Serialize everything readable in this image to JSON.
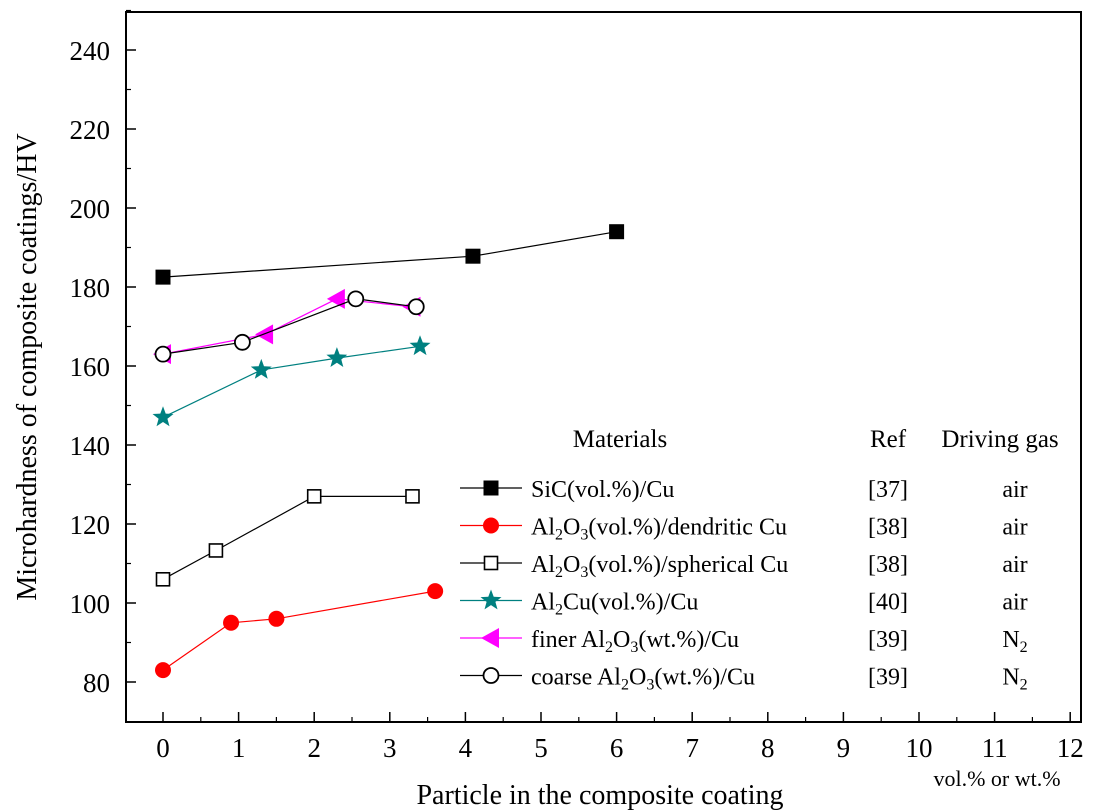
{
  "chart_data": {
    "type": "line",
    "xlabel": "Particle in the composite coating",
    "xunit": "vol.% or wt.%",
    "ylabel": "Microhardness of composite coatings/HV",
    "xlim": [
      -0.5,
      12
    ],
    "ylim": [
      71,
      254
    ],
    "xticks": [
      0,
      1,
      2,
      3,
      4,
      5,
      6,
      7,
      8,
      9,
      10,
      11,
      12
    ],
    "yticks": [
      80,
      100,
      120,
      140,
      160,
      180,
      200,
      220,
      240
    ],
    "legend": {
      "headers": {
        "materials": "Materials",
        "ref": "Ref",
        "gas": "Driving gas"
      },
      "placement": "lower-right"
    },
    "series": [
      {
        "name": "SiC(vol.%)/Cu",
        "ref": "[37]",
        "gas": "air",
        "marker": "square-filled",
        "color": "#000000",
        "line_color": "#000000",
        "x": [
          0,
          4.1,
          6.0
        ],
        "y": [
          182.5,
          187.8,
          194.0
        ],
        "label_parts": [
          {
            "t": "SiC(vol.%)/Cu"
          }
        ],
        "gas_parts": [
          {
            "t": "air"
          }
        ]
      },
      {
        "name": "Al2O3(vol.%)/dendritic Cu",
        "ref": "[38]",
        "gas": "air",
        "marker": "circle-filled",
        "color": "#ff0000",
        "line_color": "#ff0000",
        "x": [
          0,
          0.9,
          1.5,
          3.6
        ],
        "y": [
          83,
          95,
          96,
          103
        ],
        "label_parts": [
          {
            "t": "Al"
          },
          {
            "t": "2",
            "sub": true
          },
          {
            "t": "O"
          },
          {
            "t": "3",
            "sub": true
          },
          {
            "t": "(vol.%)/dendritic Cu"
          }
        ],
        "gas_parts": [
          {
            "t": "air"
          }
        ]
      },
      {
        "name": "Al2O3(vol.%)/spherical Cu",
        "ref": "[38]",
        "gas": "air",
        "marker": "square-open",
        "color": "#000000",
        "line_color": "#000000",
        "x": [
          0,
          0.7,
          2.0,
          3.3
        ],
        "y": [
          106,
          113.3,
          127,
          127
        ],
        "label_parts": [
          {
            "t": "Al"
          },
          {
            "t": "2",
            "sub": true
          },
          {
            "t": "O"
          },
          {
            "t": "3",
            "sub": true
          },
          {
            "t": "(vol.%)/spherical Cu"
          }
        ],
        "gas_parts": [
          {
            "t": "air"
          }
        ]
      },
      {
        "name": "Al2Cu(vol.%)/Cu",
        "ref": "[40]",
        "gas": "air",
        "marker": "star",
        "color": "#008080",
        "line_color": "#008080",
        "x": [
          0,
          1.3,
          2.3,
          3.4
        ],
        "y": [
          147,
          159,
          162,
          165
        ],
        "label_parts": [
          {
            "t": "Al"
          },
          {
            "t": "2",
            "sub": true
          },
          {
            "t": "Cu(vol.%)/Cu"
          }
        ],
        "gas_parts": [
          {
            "t": "air"
          }
        ]
      },
      {
        "name": "finer Al2O3(wt.%)/Cu",
        "ref": "[39]",
        "gas": "N2",
        "marker": "triangle-left",
        "color": "#ff00ff",
        "line_color": "#ff00ff",
        "x": [
          0,
          1.35,
          2.3,
          3.3
        ],
        "y": [
          163,
          168,
          177,
          175
        ],
        "label_parts": [
          {
            "t": "finer Al"
          },
          {
            "t": "2",
            "sub": true
          },
          {
            "t": "O"
          },
          {
            "t": "3",
            "sub": true
          },
          {
            "t": "(wt.%)/Cu"
          }
        ],
        "gas_parts": [
          {
            "t": "N"
          },
          {
            "t": "2",
            "sub": true
          }
        ]
      },
      {
        "name": "coarse Al2O3(wt.%)/Cu",
        "ref": "[39]",
        "gas": "N2",
        "marker": "circle-open",
        "color": "#000000",
        "line_color": "#000000",
        "x": [
          0,
          1.05,
          2.55,
          3.35
        ],
        "y": [
          163,
          166,
          177,
          175
        ],
        "label_parts": [
          {
            "t": "coarse Al"
          },
          {
            "t": "2",
            "sub": true
          },
          {
            "t": "O"
          },
          {
            "t": "3",
            "sub": true
          },
          {
            "t": "(wt.%)/Cu"
          }
        ],
        "gas_parts": [
          {
            "t": "N"
          },
          {
            "t": "2",
            "sub": true
          }
        ]
      }
    ]
  }
}
